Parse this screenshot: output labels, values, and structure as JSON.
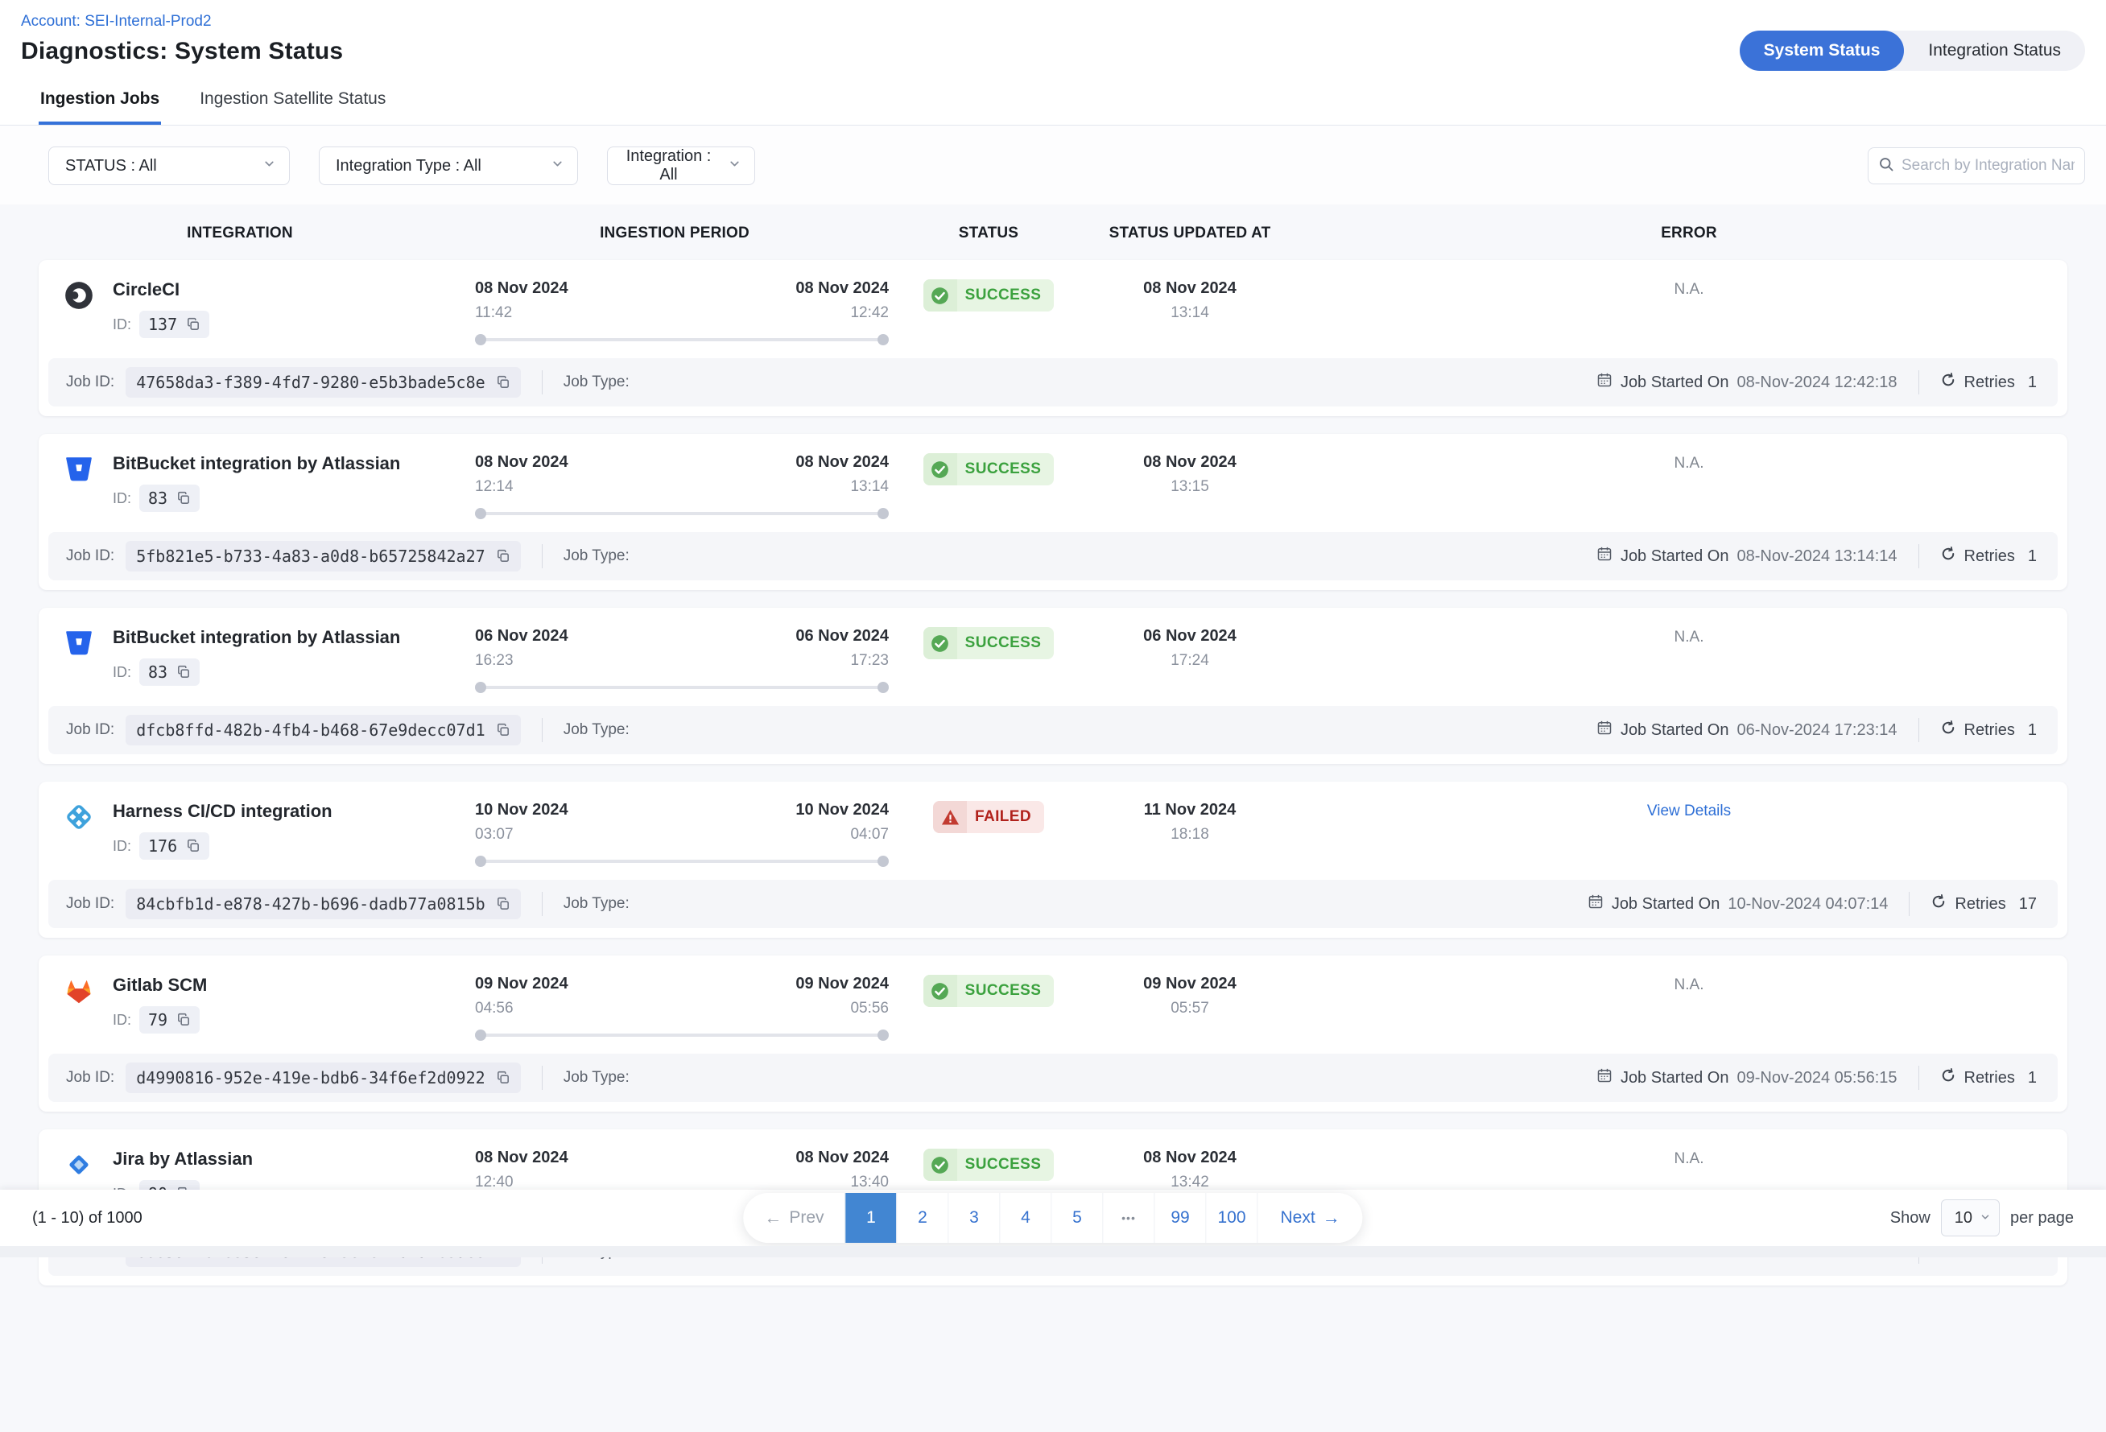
{
  "colors": {
    "accent_blue": "#3b72d8",
    "link_blue": "#2e6fd6",
    "success_green": "#3ba13e",
    "failed_red": "#b1221c"
  },
  "header": {
    "account_link": "Account: SEI-Internal-Prod2",
    "title": "Diagnostics: System Status",
    "view_toggle": {
      "options": [
        "System Status",
        "Integration Status"
      ],
      "active": "System Status"
    }
  },
  "tabs": {
    "items": [
      "Ingestion Jobs",
      "Ingestion Satellite Status"
    ],
    "active": "Ingestion Jobs"
  },
  "filters": {
    "status": "STATUS : All",
    "integration_type": "Integration Type : All",
    "integration": "Integration : All"
  },
  "search": {
    "placeholder": "Search by Integration Name"
  },
  "table": {
    "columns": [
      "INTEGRATION",
      "INGESTION PERIOD",
      "STATUS",
      "STATUS UPDATED AT",
      "ERROR"
    ],
    "labels": {
      "id": "ID:",
      "job_id": "Job ID:",
      "job_type": "Job Type:",
      "job_started": "Job Started On",
      "retries": "Retries"
    },
    "rows": [
      {
        "name": "CircleCI",
        "icon": "circleci",
        "id": "137",
        "start_date": "08 Nov 2024",
        "start_time": "11:42",
        "end_date": "08 Nov 2024",
        "end_time": "12:42",
        "status": "SUCCESS",
        "updated_date": "08 Nov 2024",
        "updated_time": "13:14",
        "error": "N.A.",
        "error_link": false,
        "job_id": "47658da3-f389-4fd7-9280-e5b3bade5c8e",
        "job_started": "08-Nov-2024 12:42:18",
        "retries": "1"
      },
      {
        "name": "BitBucket integration by Atlassian",
        "icon": "bitbucket",
        "id": "83",
        "start_date": "08 Nov 2024",
        "start_time": "12:14",
        "end_date": "08 Nov 2024",
        "end_time": "13:14",
        "status": "SUCCESS",
        "updated_date": "08 Nov 2024",
        "updated_time": "13:15",
        "error": "N.A.",
        "error_link": false,
        "job_id": "5fb821e5-b733-4a83-a0d8-b65725842a27",
        "job_started": "08-Nov-2024 13:14:14",
        "retries": "1"
      },
      {
        "name": "BitBucket integration by Atlassian",
        "icon": "bitbucket",
        "id": "83",
        "start_date": "06 Nov 2024",
        "start_time": "16:23",
        "end_date": "06 Nov 2024",
        "end_time": "17:23",
        "status": "SUCCESS",
        "updated_date": "06 Nov 2024",
        "updated_time": "17:24",
        "error": "N.A.",
        "error_link": false,
        "job_id": "dfcb8ffd-482b-4fb4-b468-67e9decc07d1",
        "job_started": "06-Nov-2024 17:23:14",
        "retries": "1"
      },
      {
        "name": "Harness CI/CD integration",
        "icon": "harness",
        "id": "176",
        "start_date": "10 Nov 2024",
        "start_time": "03:07",
        "end_date": "10 Nov 2024",
        "end_time": "04:07",
        "status": "FAILED",
        "updated_date": "11 Nov 2024",
        "updated_time": "18:18",
        "error": "View Details",
        "error_link": true,
        "job_id": "84cbfb1d-e878-427b-b696-dadb77a0815b",
        "job_started": "10-Nov-2024 04:07:14",
        "retries": "17"
      },
      {
        "name": "Gitlab SCM",
        "icon": "gitlab",
        "id": "79",
        "start_date": "09 Nov 2024",
        "start_time": "04:56",
        "end_date": "09 Nov 2024",
        "end_time": "05:56",
        "status": "SUCCESS",
        "updated_date": "09 Nov 2024",
        "updated_time": "05:57",
        "error": "N.A.",
        "error_link": false,
        "job_id": "d4990816-952e-419e-bdb6-34f6ef2d0922",
        "job_started": "09-Nov-2024 05:56:15",
        "retries": "1"
      },
      {
        "name": "Jira by Atlassian",
        "icon": "jira",
        "id": "90",
        "start_date": "08 Nov 2024",
        "start_time": "12:40",
        "end_date": "08 Nov 2024",
        "end_time": "13:40",
        "status": "SUCCESS",
        "updated_date": "08 Nov 2024",
        "updated_time": "13:42",
        "error": "N.A.",
        "error_link": false,
        "job_id": "e0659f16-6359-4972-9f3e-e7fb1d1c8de8",
        "job_started": "08-Nov-2024 13:40:19",
        "retries": "1"
      }
    ]
  },
  "pagination": {
    "range_text": "(1 - 10) of 1000",
    "prev": "Prev",
    "next": "Next",
    "pages": [
      "1",
      "2",
      "3",
      "4",
      "5",
      "•••",
      "99",
      "100"
    ],
    "active_page": "1",
    "show_label": "Show",
    "page_size": "10",
    "per_page_label": "per page"
  }
}
